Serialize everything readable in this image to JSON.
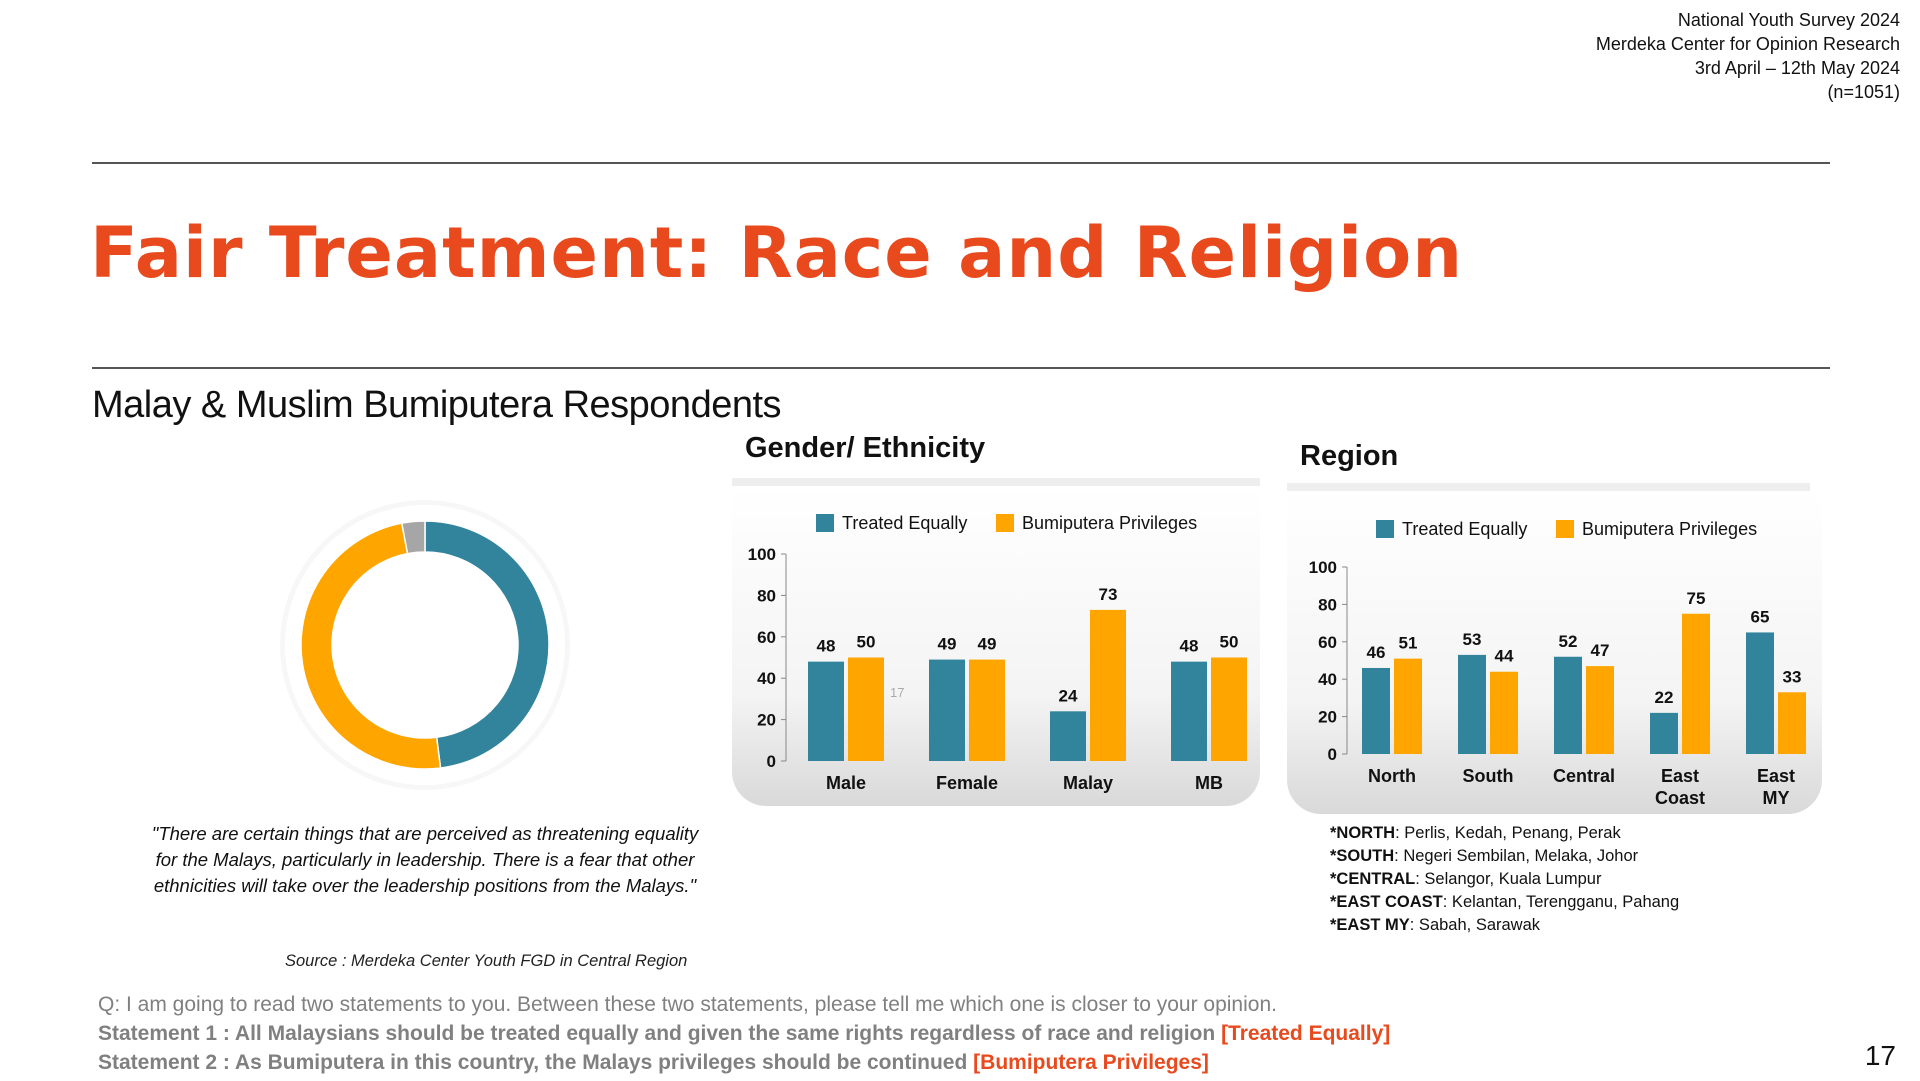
{
  "meta": {
    "survey": "National Youth Survey 2024",
    "org": "Merdeka Center for Opinion Research",
    "dates": "3rd April – 12th May 2024",
    "n": "(n=1051)"
  },
  "title": "Fair Treatment: Race and Religion",
  "subtitle": "Malay & Muslim Bumiputera Respondents",
  "colors": {
    "teal": "#31849b",
    "orange": "#ffa500",
    "gray": "#a6a6a6",
    "accent": "#e8491d"
  },
  "donut_caption": {
    "quote": "\"There are certain things that are perceived as threatening equality for the Malays, particularly in leadership. There is a fear that other ethnicities will take over the leadership positions from the Malays.\"",
    "source": "Source : Merdeka Center Youth FGD in Central Region"
  },
  "panels": {
    "gender": {
      "title": "Gender/ Ethnicity",
      "stray_label": "17"
    },
    "region": {
      "title": "Region"
    }
  },
  "region_notes": [
    {
      "key": "*NORTH",
      "value": ": Perlis, Kedah, Penang, Perak"
    },
    {
      "key": "*SOUTH",
      "value": ": Negeri Sembilan, Melaka, Johor"
    },
    {
      "key": "*CENTRAL",
      "value": ": Selangor, Kuala Lumpur"
    },
    {
      "key": "*EAST COAST",
      "value": ": Kelantan, Terengganu, Pahang"
    },
    {
      "key": "*EAST MY",
      "value": ": Sabah, Sarawak"
    }
  ],
  "question": {
    "q": "Q: I am going to read two statements to you. Between these two statements, please tell me which one is closer to your opinion.",
    "s1": "Statement 1 : All Malaysians should be treated equally and given the same rights regardless of race and religion",
    "s1_tag": "[Treated Equally]",
    "s2": "Statement 2 : As Bumiputera in this country, the Malays privileges should be continued",
    "s2_tag": "[Bumiputera Privileges]"
  },
  "page_number": "17",
  "chart_data": [
    {
      "type": "pie",
      "variant": "donut",
      "title": "",
      "categories": [
        "Treated Equally",
        "Bumiputera Privileges",
        "Other"
      ],
      "values": [
        48,
        49,
        3
      ],
      "colors": [
        "#31849b",
        "#ffa500",
        "#a6a6a6"
      ]
    },
    {
      "type": "bar",
      "title": "Gender/ Ethnicity",
      "categories": [
        "Male",
        "Female",
        "Malay",
        "MB"
      ],
      "series": [
        {
          "name": "Treated Equally",
          "color": "#31849b",
          "values": [
            48,
            49,
            24,
            48
          ]
        },
        {
          "name": "Bumiputera Privileges",
          "color": "#ffa500",
          "values": [
            50,
            49,
            73,
            50
          ]
        }
      ],
      "ylim": [
        0,
        100
      ],
      "yticks": [
        0,
        20,
        40,
        60,
        80,
        100
      ],
      "legend": "top",
      "grid": false
    },
    {
      "type": "bar",
      "title": "Region",
      "categories": [
        "North",
        "South",
        "Central",
        "East Coast",
        "East MY"
      ],
      "series": [
        {
          "name": "Treated Equally",
          "color": "#31849b",
          "values": [
            46,
            53,
            52,
            22,
            65
          ]
        },
        {
          "name": "Bumiputera Privileges",
          "color": "#ffa500",
          "values": [
            51,
            44,
            47,
            75,
            33
          ]
        }
      ],
      "ylim": [
        0,
        100
      ],
      "yticks": [
        0,
        20,
        40,
        60,
        80,
        100
      ],
      "legend": "top",
      "grid": false
    }
  ]
}
